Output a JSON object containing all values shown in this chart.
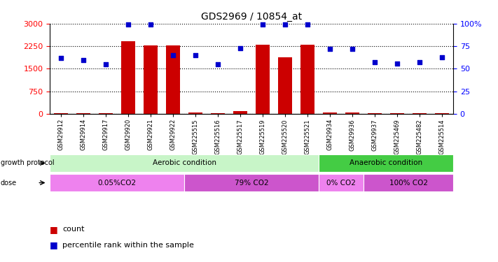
{
  "title": "GDS2969 / 10854_at",
  "samples": [
    "GSM29912",
    "GSM29914",
    "GSM29917",
    "GSM29920",
    "GSM29921",
    "GSM29922",
    "GSM225515",
    "GSM225516",
    "GSM225517",
    "GSM225519",
    "GSM225520",
    "GSM225521",
    "GSM29934",
    "GSM29936",
    "GSM29937",
    "GSM225469",
    "GSM225482",
    "GSM225514"
  ],
  "counts": [
    30,
    25,
    20,
    2420,
    2270,
    2270,
    50,
    30,
    100,
    2310,
    1870,
    2295,
    55,
    45,
    20,
    30,
    25,
    35
  ],
  "percentiles": [
    62,
    60,
    55,
    99,
    99,
    65,
    65,
    55,
    73,
    99,
    99,
    99,
    72,
    72,
    57,
    56,
    57,
    63
  ],
  "bar_color": "#cc0000",
  "dot_color": "#0000cc",
  "ylim_left": [
    0,
    3000
  ],
  "ylim_right": [
    0,
    100
  ],
  "yticks_left": [
    0,
    750,
    1500,
    2250,
    3000
  ],
  "yticks_right": [
    0,
    25,
    50,
    75,
    100
  ],
  "yticklabels_left": [
    "0",
    "750",
    "1500",
    "2250",
    "3000"
  ],
  "yticklabels_right": [
    "0",
    "25",
    "50",
    "75",
    "100%"
  ],
  "growth_protocol_groups": [
    {
      "label": "Aerobic condition",
      "start": 0,
      "end": 11,
      "color": "#c8f5c8"
    },
    {
      "label": "Anaerobic condition",
      "start": 12,
      "end": 17,
      "color": "#44cc44"
    }
  ],
  "dose_groups": [
    {
      "label": "0.05%CO2",
      "start": 0,
      "end": 5,
      "color": "#ee82ee"
    },
    {
      "label": "79% CO2",
      "start": 6,
      "end": 11,
      "color": "#cc55cc"
    },
    {
      "label": "0% CO2",
      "start": 12,
      "end": 13,
      "color": "#ee82ee"
    },
    {
      "label": "100% CO2",
      "start": 14,
      "end": 17,
      "color": "#cc55cc"
    }
  ],
  "growth_protocol_label": "growth protocol",
  "dose_label": "dose",
  "legend_count_label": "count",
  "legend_pct_label": "percentile rank within the sample",
  "background_color": "#ffffff"
}
